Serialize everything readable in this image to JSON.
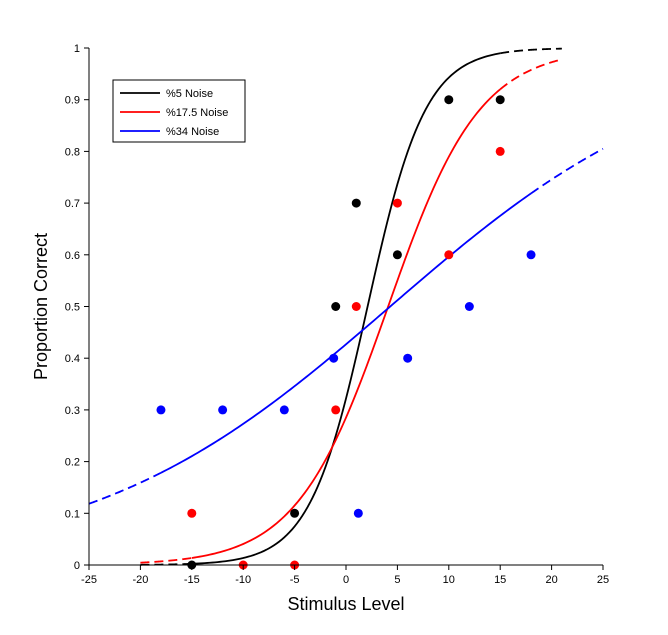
{
  "chart_data": {
    "type": "scatter",
    "title": "",
    "xlabel": "Stimulus Level",
    "ylabel": "Proportion Correct",
    "xlim": [
      -25,
      25
    ],
    "ylim": [
      0,
      1
    ],
    "xticks": [
      -25,
      -20,
      -15,
      -10,
      -5,
      0,
      5,
      10,
      15,
      20,
      25
    ],
    "yticks": [
      0,
      0.1,
      0.2,
      0.3,
      0.4,
      0.5,
      0.6,
      0.7,
      0.8,
      0.9,
      1
    ],
    "xtick_labels": [
      "-25",
      "-20",
      "-15",
      "-10",
      "-5",
      "0",
      "5",
      "10",
      "15",
      "20",
      "25"
    ],
    "ytick_labels": [
      "0",
      "0.1",
      "0.2",
      "0.3",
      "0.4",
      "0.5",
      "0.6",
      "0.7",
      "0.8",
      "0.9",
      "1"
    ],
    "grid": false,
    "legend_position": "top-left",
    "series": [
      {
        "name": "%5 Noise",
        "color": "#000000",
        "points": [
          [
            -15,
            0
          ],
          [
            -5,
            0.1
          ],
          [
            -1,
            0.5
          ],
          [
            1,
            0.7
          ],
          [
            5,
            0.6
          ],
          [
            10,
            0.9
          ],
          [
            15,
            0.9
          ]
        ],
        "curve": {
          "type": "logistic",
          "midpoint": 2.1,
          "scale": 2.82,
          "solid_range": [
            -15,
            15
          ],
          "dashed_range": [
            -20,
            21
          ]
        }
      },
      {
        "name": "%17.5 Noise",
        "color": "#ff0000",
        "points": [
          [
            -15,
            0.1
          ],
          [
            -10,
            0
          ],
          [
            -5,
            0
          ],
          [
            -1,
            0.3
          ],
          [
            1,
            0.5
          ],
          [
            5,
            0.7
          ],
          [
            10,
            0.6
          ],
          [
            15,
            0.8
          ]
        ],
        "curve": {
          "type": "logistic",
          "midpoint": 4.1,
          "scale": 4.46,
          "solid_range": [
            -15,
            15
          ],
          "dashed_range": [
            -20,
            21
          ]
        }
      },
      {
        "name": "%34 Noise",
        "color": "#0000ff",
        "points": [
          [
            -18,
            0.3
          ],
          [
            -12,
            0.3
          ],
          [
            -6,
            0.3
          ],
          [
            -1.2,
            0.4
          ],
          [
            1.2,
            0.1
          ],
          [
            6,
            0.4
          ],
          [
            12,
            0.5
          ],
          [
            18,
            0.6
          ]
        ],
        "curve": {
          "type": "logistic",
          "midpoint": 4.3,
          "scale": 14.6,
          "solid_range": [
            -18,
            18
          ],
          "dashed_range": [
            -25,
            25
          ]
        }
      }
    ]
  }
}
